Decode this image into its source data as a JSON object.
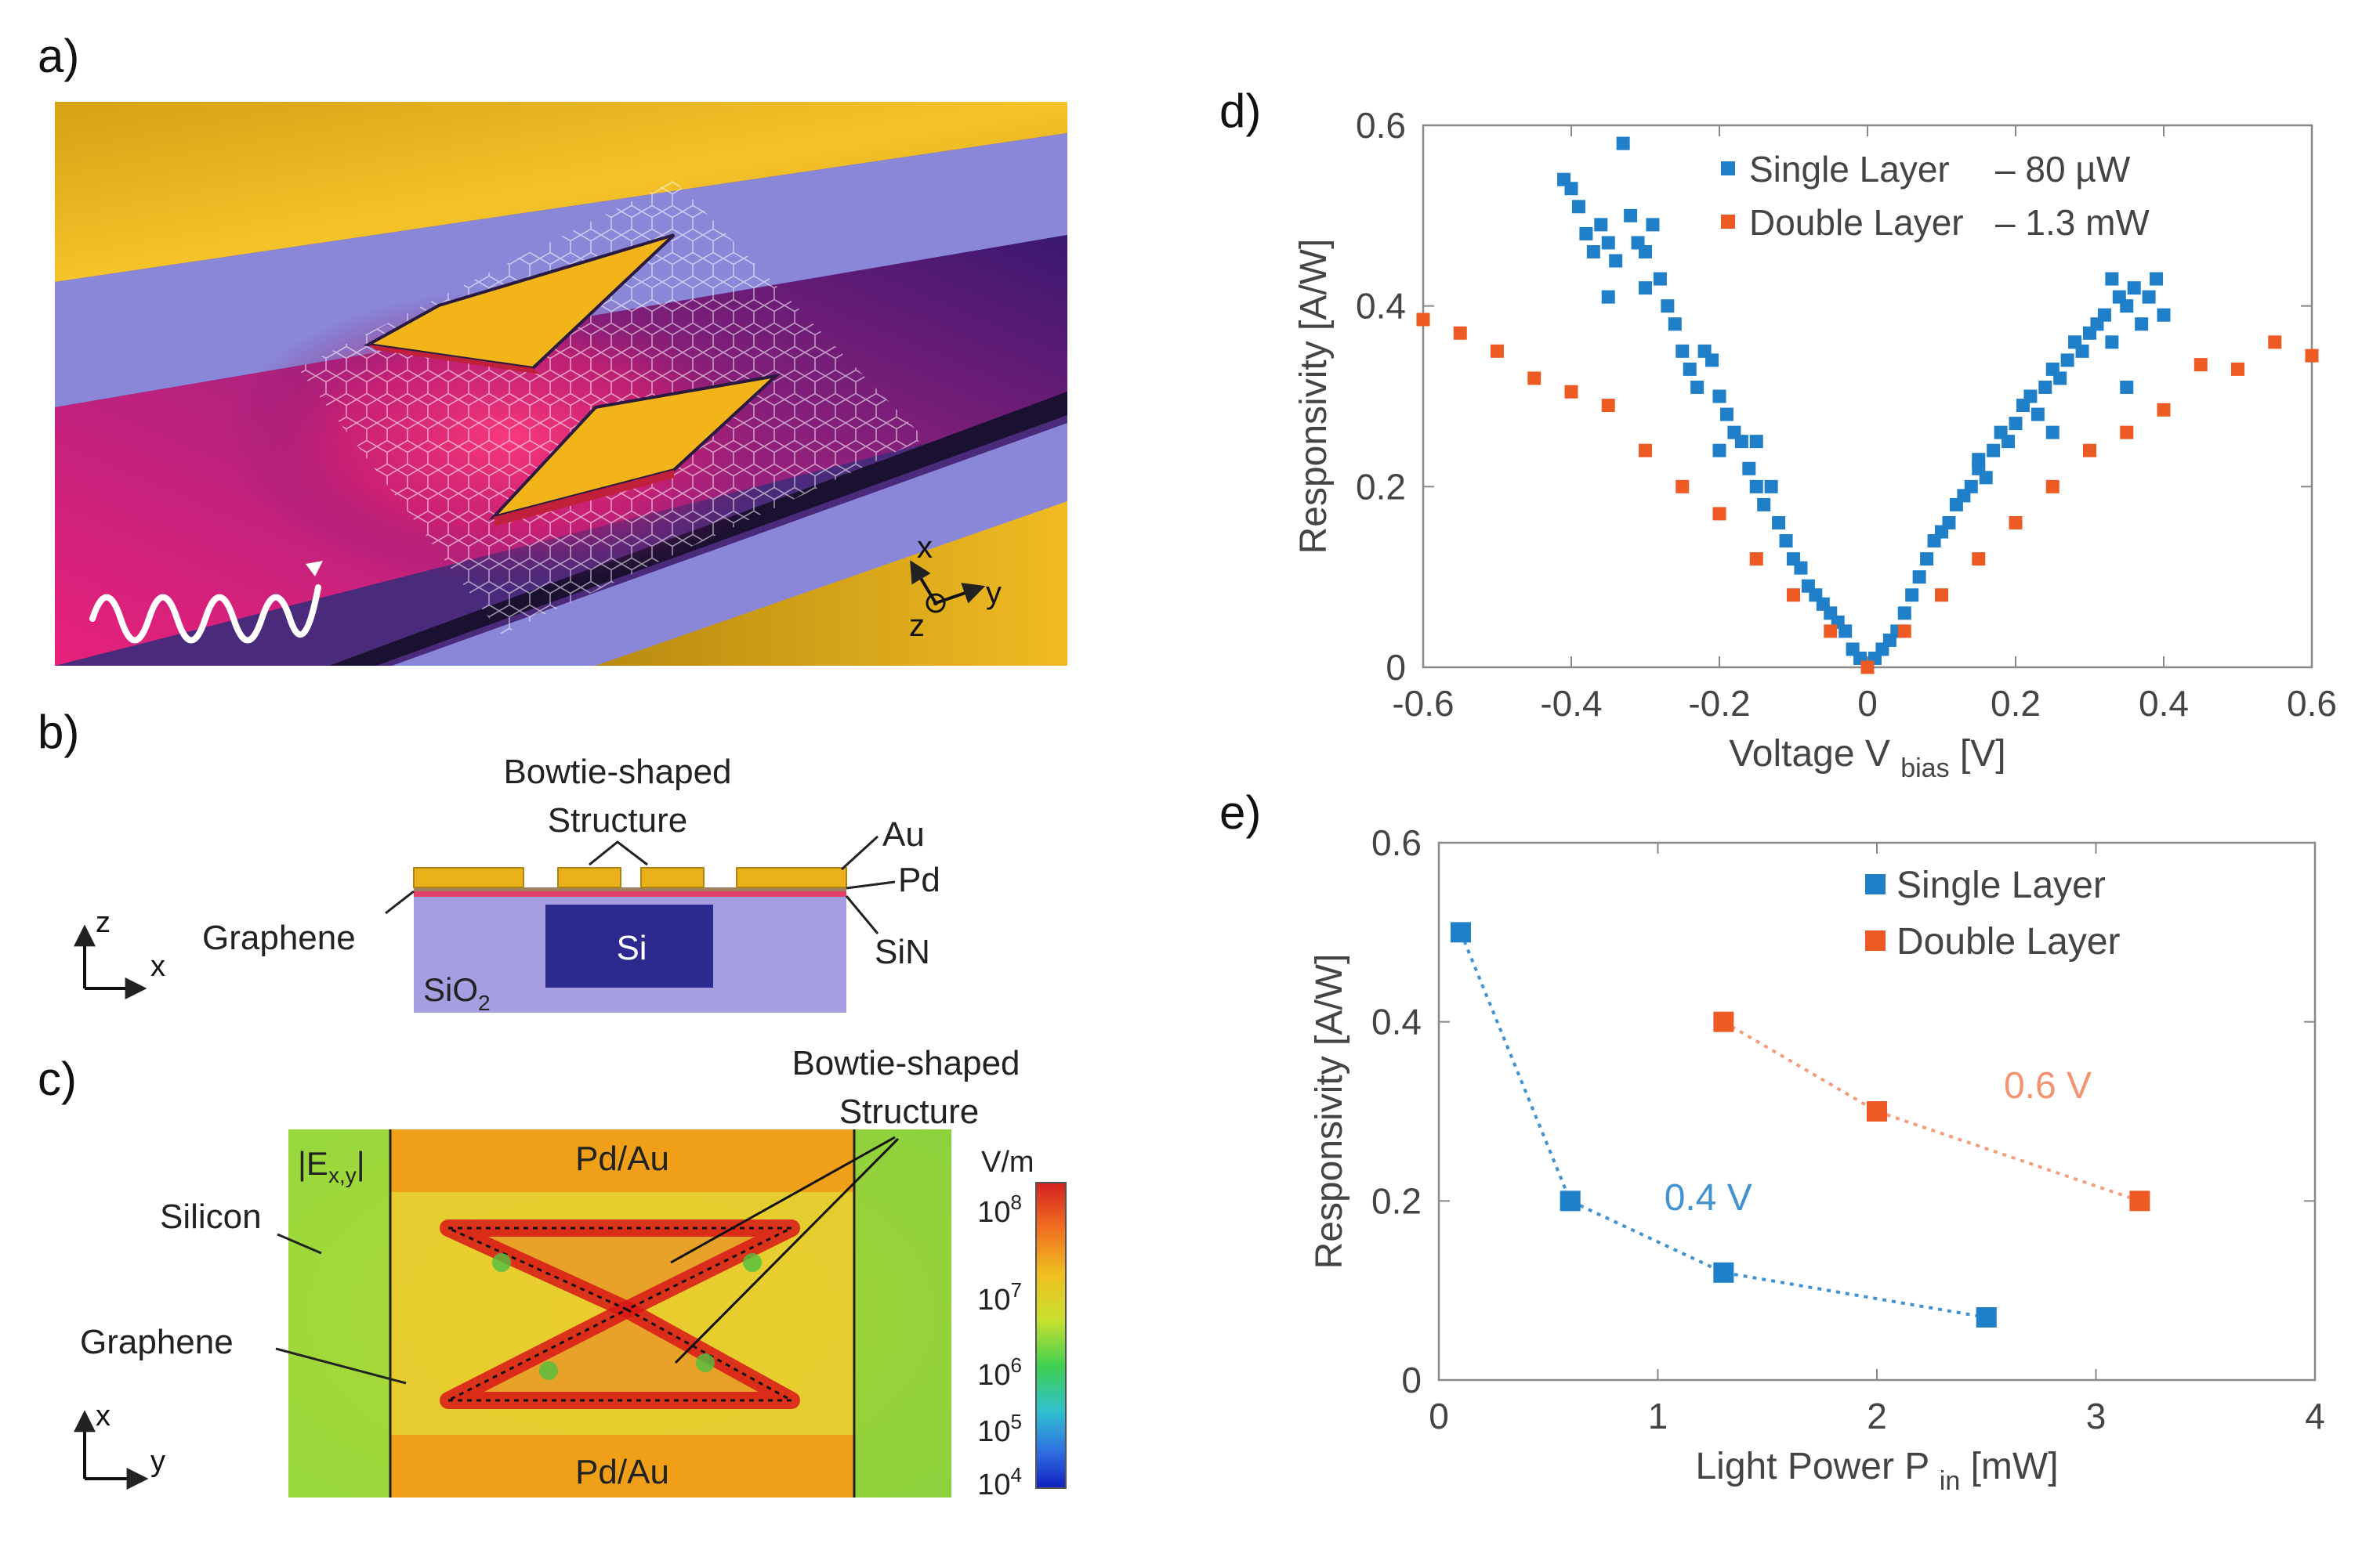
{
  "panels": {
    "a": {
      "label": "a)",
      "axes": {
        "x": "x",
        "y": "y",
        "z": "z"
      }
    },
    "b": {
      "label": "b)",
      "callouts": {
        "bowtie_line1": "Bowtie-shaped",
        "bowtie_line2": "Structure",
        "au": "Au",
        "pd": "Pd",
        "graphene": "Graphene",
        "sin": "SiN",
        "si": "Si",
        "sio2_main": "SiO",
        "sio2_sub": "2"
      },
      "axes": {
        "vertical": "z",
        "horizontal": "x"
      }
    },
    "c": {
      "label": "c)",
      "field_label": "|E",
      "field_sub": "x,y",
      "field_close": "|",
      "pd_au_top": "Pd/Au",
      "pd_au_bottom": "Pd/Au",
      "silicon": "Silicon",
      "graphene": "Graphene",
      "bowtie_line1": "Bowtie-shaped",
      "bowtie_line2": "Structure",
      "colorbar_unit": "V/m",
      "colorbar_ticks": [
        {
          "base": "10",
          "exp": "8"
        },
        {
          "base": "10",
          "exp": "7"
        },
        {
          "base": "10",
          "exp": "6"
        },
        {
          "base": "10",
          "exp": "5"
        },
        {
          "base": "10",
          "exp": "4"
        }
      ],
      "axes": {
        "vertical": "x",
        "horizontal": "y"
      }
    },
    "d": {
      "label": "d)"
    },
    "e": {
      "label": "e)"
    }
  },
  "colors": {
    "single_layer": "#1f7fc8",
    "double_layer": "#ee5a24",
    "gold": "#f2b418",
    "sio2": "#a59ee0",
    "si": "#2d2a8f"
  },
  "chart_data": [
    {
      "id": "d",
      "type": "scatter",
      "title": "",
      "xlabel": "Voltage V",
      "xlabel_sub": "bias",
      "xlabel_unit": "[V]",
      "ylabel": "Responsivity [A/W]",
      "xlim": [
        -0.6,
        0.6
      ],
      "ylim": [
        0,
        0.6
      ],
      "xticks": [
        -0.6,
        -0.4,
        -0.2,
        0,
        0.2,
        0.4,
        0.6
      ],
      "xtick_labels": [
        "-0.6",
        "-0.4",
        "-0.2",
        "0",
        "0.2",
        "0.4",
        "0.6"
      ],
      "yticks": [
        0,
        0.2,
        0.4,
        0.6
      ],
      "ytick_labels": [
        "0",
        "0.2",
        "0.4",
        "0.6"
      ],
      "legend_position": "top-right",
      "series": [
        {
          "name": "Single Layer",
          "legend_label": "Single Layer",
          "legend_suffix": "– 80 µW",
          "color": "#1f7fc8",
          "points": [
            [
              -0.41,
              0.54
            ],
            [
              -0.4,
              0.53
            ],
            [
              -0.39,
              0.51
            ],
            [
              -0.38,
              0.48
            ],
            [
              -0.37,
              0.46
            ],
            [
              -0.36,
              0.49
            ],
            [
              -0.35,
              0.47
            ],
            [
              -0.34,
              0.45
            ],
            [
              -0.33,
              0.58
            ],
            [
              -0.32,
              0.5
            ],
            [
              -0.31,
              0.47
            ],
            [
              -0.3,
              0.46
            ],
            [
              -0.29,
              0.49
            ],
            [
              -0.28,
              0.43
            ],
            [
              -0.27,
              0.4
            ],
            [
              -0.26,
              0.38
            ],
            [
              -0.25,
              0.35
            ],
            [
              -0.24,
              0.33
            ],
            [
              -0.23,
              0.31
            ],
            [
              -0.22,
              0.35
            ],
            [
              -0.21,
              0.34
            ],
            [
              -0.2,
              0.3
            ],
            [
              -0.19,
              0.28
            ],
            [
              -0.18,
              0.26
            ],
            [
              -0.17,
              0.25
            ],
            [
              -0.16,
              0.22
            ],
            [
              -0.15,
              0.2
            ],
            [
              -0.14,
              0.18
            ],
            [
              -0.13,
              0.2
            ],
            [
              -0.12,
              0.16
            ],
            [
              -0.11,
              0.14
            ],
            [
              -0.1,
              0.12
            ],
            [
              -0.09,
              0.11
            ],
            [
              -0.08,
              0.09
            ],
            [
              -0.07,
              0.08
            ],
            [
              -0.06,
              0.07
            ],
            [
              -0.05,
              0.06
            ],
            [
              -0.04,
              0.05
            ],
            [
              -0.03,
              0.04
            ],
            [
              -0.02,
              0.02
            ],
            [
              -0.01,
              0.01
            ],
            [
              0.0,
              0.0
            ],
            [
              0.01,
              0.01
            ],
            [
              0.02,
              0.02
            ],
            [
              0.03,
              0.03
            ],
            [
              0.04,
              0.04
            ],
            [
              0.05,
              0.06
            ],
            [
              0.06,
              0.08
            ],
            [
              0.07,
              0.1
            ],
            [
              0.08,
              0.12
            ],
            [
              0.09,
              0.14
            ],
            [
              0.1,
              0.15
            ],
            [
              0.11,
              0.16
            ],
            [
              0.12,
              0.18
            ],
            [
              0.13,
              0.19
            ],
            [
              0.14,
              0.2
            ],
            [
              0.15,
              0.22
            ],
            [
              0.16,
              0.21
            ],
            [
              0.17,
              0.24
            ],
            [
              0.18,
              0.26
            ],
            [
              0.19,
              0.25
            ],
            [
              0.2,
              0.27
            ],
            [
              0.21,
              0.29
            ],
            [
              0.22,
              0.3
            ],
            [
              0.23,
              0.28
            ],
            [
              0.24,
              0.31
            ],
            [
              0.25,
              0.33
            ],
            [
              0.26,
              0.32
            ],
            [
              0.27,
              0.34
            ],
            [
              0.28,
              0.36
            ],
            [
              0.29,
              0.35
            ],
            [
              0.3,
              0.37
            ],
            [
              0.31,
              0.38
            ],
            [
              0.32,
              0.39
            ],
            [
              0.33,
              0.36
            ],
            [
              0.34,
              0.41
            ],
            [
              0.35,
              0.4
            ],
            [
              0.36,
              0.42
            ],
            [
              0.37,
              0.38
            ],
            [
              0.38,
              0.41
            ],
            [
              0.39,
              0.43
            ],
            [
              0.4,
              0.39
            ],
            [
              -0.35,
              0.41
            ],
            [
              -0.3,
              0.42
            ],
            [
              -0.2,
              0.24
            ],
            [
              -0.15,
              0.25
            ],
            [
              0.15,
              0.23
            ],
            [
              0.25,
              0.26
            ],
            [
              0.33,
              0.43
            ],
            [
              0.35,
              0.31
            ]
          ]
        },
        {
          "name": "Double Layer",
          "legend_label": "Double Layer",
          "legend_suffix": "– 1.3 mW",
          "color": "#ee5a24",
          "points": [
            [
              -0.6,
              0.385
            ],
            [
              -0.55,
              0.37
            ],
            [
              -0.5,
              0.35
            ],
            [
              -0.45,
              0.32
            ],
            [
              -0.4,
              0.305
            ],
            [
              -0.35,
              0.29
            ],
            [
              -0.3,
              0.24
            ],
            [
              -0.25,
              0.2
            ],
            [
              -0.2,
              0.17
            ],
            [
              -0.15,
              0.12
            ],
            [
              -0.1,
              0.08
            ],
            [
              -0.05,
              0.04
            ],
            [
              0.0,
              0.0
            ],
            [
              0.05,
              0.04
            ],
            [
              0.1,
              0.08
            ],
            [
              0.15,
              0.12
            ],
            [
              0.2,
              0.16
            ],
            [
              0.25,
              0.2
            ],
            [
              0.3,
              0.24
            ],
            [
              0.35,
              0.26
            ],
            [
              0.4,
              0.285
            ],
            [
              0.45,
              0.335
            ],
            [
              0.5,
              0.33
            ],
            [
              0.55,
              0.36
            ],
            [
              0.6,
              0.345
            ]
          ]
        }
      ]
    },
    {
      "id": "e",
      "type": "line",
      "title": "",
      "xlabel": "Light Power P",
      "xlabel_sub": "in",
      "xlabel_unit": "[mW]",
      "ylabel": "Responsivity [A/W]",
      "xlim": [
        0,
        4
      ],
      "ylim": [
        0,
        0.6
      ],
      "xticks": [
        0,
        1,
        2,
        3,
        4
      ],
      "xtick_labels": [
        "0",
        "1",
        "2",
        "3",
        "4"
      ],
      "yticks": [
        0,
        0.2,
        0.4,
        0.6
      ],
      "ytick_labels": [
        "0",
        "0.2",
        "0.4",
        "0.6"
      ],
      "legend_position": "top-right",
      "series": [
        {
          "name": "Single Layer",
          "legend_label": "Single Layer",
          "annotation": "0.4 V",
          "color": "#1f7fc8",
          "x": [
            0.1,
            0.6,
            1.3,
            2.5
          ],
          "y": [
            0.5,
            0.2,
            0.12,
            0.07
          ]
        },
        {
          "name": "Double Layer",
          "legend_label": "Double Layer",
          "annotation": "0.6 V",
          "color": "#ee5a24",
          "x": [
            1.3,
            2.0,
            3.2
          ],
          "y": [
            0.4,
            0.3,
            0.2
          ]
        }
      ]
    }
  ]
}
